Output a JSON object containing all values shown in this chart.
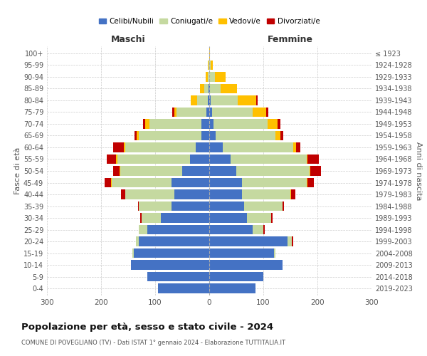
{
  "age_groups": [
    "0-4",
    "5-9",
    "10-14",
    "15-19",
    "20-24",
    "25-29",
    "30-34",
    "35-39",
    "40-44",
    "45-49",
    "50-54",
    "55-59",
    "60-64",
    "65-69",
    "70-74",
    "75-79",
    "80-84",
    "85-89",
    "90-94",
    "95-99",
    "100+"
  ],
  "birth_years": [
    "2019-2023",
    "2014-2018",
    "2009-2013",
    "2004-2008",
    "1999-2003",
    "1994-1998",
    "1989-1993",
    "1984-1988",
    "1979-1983",
    "1974-1978",
    "1969-1973",
    "1964-1968",
    "1959-1963",
    "1954-1958",
    "1949-1953",
    "1944-1948",
    "1939-1943",
    "1934-1938",
    "1929-1933",
    "1924-1928",
    "≤ 1923"
  ],
  "colors": {
    "celibi": "#4472c4",
    "coniugati": "#c5d9a0",
    "vedovi": "#ffc000",
    "divorziati": "#c00000"
  },
  "maschi": {
    "celibi": [
      95,
      115,
      145,
      140,
      130,
      115,
      90,
      70,
      65,
      70,
      50,
      35,
      25,
      15,
      15,
      5,
      2,
      1,
      0,
      0,
      0
    ],
    "coniugati": [
      0,
      0,
      0,
      2,
      5,
      15,
      35,
      60,
      90,
      110,
      115,
      135,
      130,
      115,
      95,
      55,
      20,
      8,
      3,
      1,
      0
    ],
    "vedovi": [
      0,
      0,
      0,
      0,
      1,
      0,
      0,
      0,
      0,
      1,
      1,
      2,
      3,
      4,
      8,
      5,
      12,
      8,
      4,
      1,
      0
    ],
    "divorziati": [
      0,
      0,
      0,
      0,
      0,
      0,
      2,
      2,
      8,
      12,
      12,
      18,
      20,
      4,
      5,
      4,
      0,
      0,
      0,
      0,
      0
    ]
  },
  "femmine": {
    "celibi": [
      85,
      100,
      135,
      120,
      145,
      80,
      70,
      65,
      60,
      60,
      50,
      40,
      25,
      12,
      8,
      5,
      2,
      1,
      0,
      0,
      0
    ],
    "coniugati": [
      0,
      0,
      0,
      2,
      8,
      20,
      45,
      70,
      90,
      120,
      135,
      140,
      130,
      110,
      100,
      75,
      50,
      20,
      10,
      2,
      0
    ],
    "vedovi": [
      0,
      0,
      0,
      0,
      0,
      0,
      0,
      0,
      1,
      2,
      2,
      2,
      5,
      10,
      18,
      25,
      35,
      30,
      20,
      5,
      1
    ],
    "divorziati": [
      0,
      0,
      0,
      0,
      2,
      2,
      2,
      3,
      8,
      12,
      20,
      20,
      8,
      5,
      5,
      4,
      2,
      0,
      0,
      0,
      0
    ]
  },
  "xlim": 300,
  "title": "Popolazione per età, sesso e stato civile - 2024",
  "subtitle": "COMUNE DI POVEGLIANO (TV) - Dati ISTAT 1° gennaio 2024 - Elaborazione TUTTITALIA.IT",
  "xlabel_left": "Maschi",
  "xlabel_right": "Femmine",
  "ylabel_left": "Fasce di età",
  "ylabel_right": "Anni di nascita",
  "legend_labels": [
    "Celibi/Nubili",
    "Coniugati/e",
    "Vedovi/e",
    "Divorziati/e"
  ]
}
